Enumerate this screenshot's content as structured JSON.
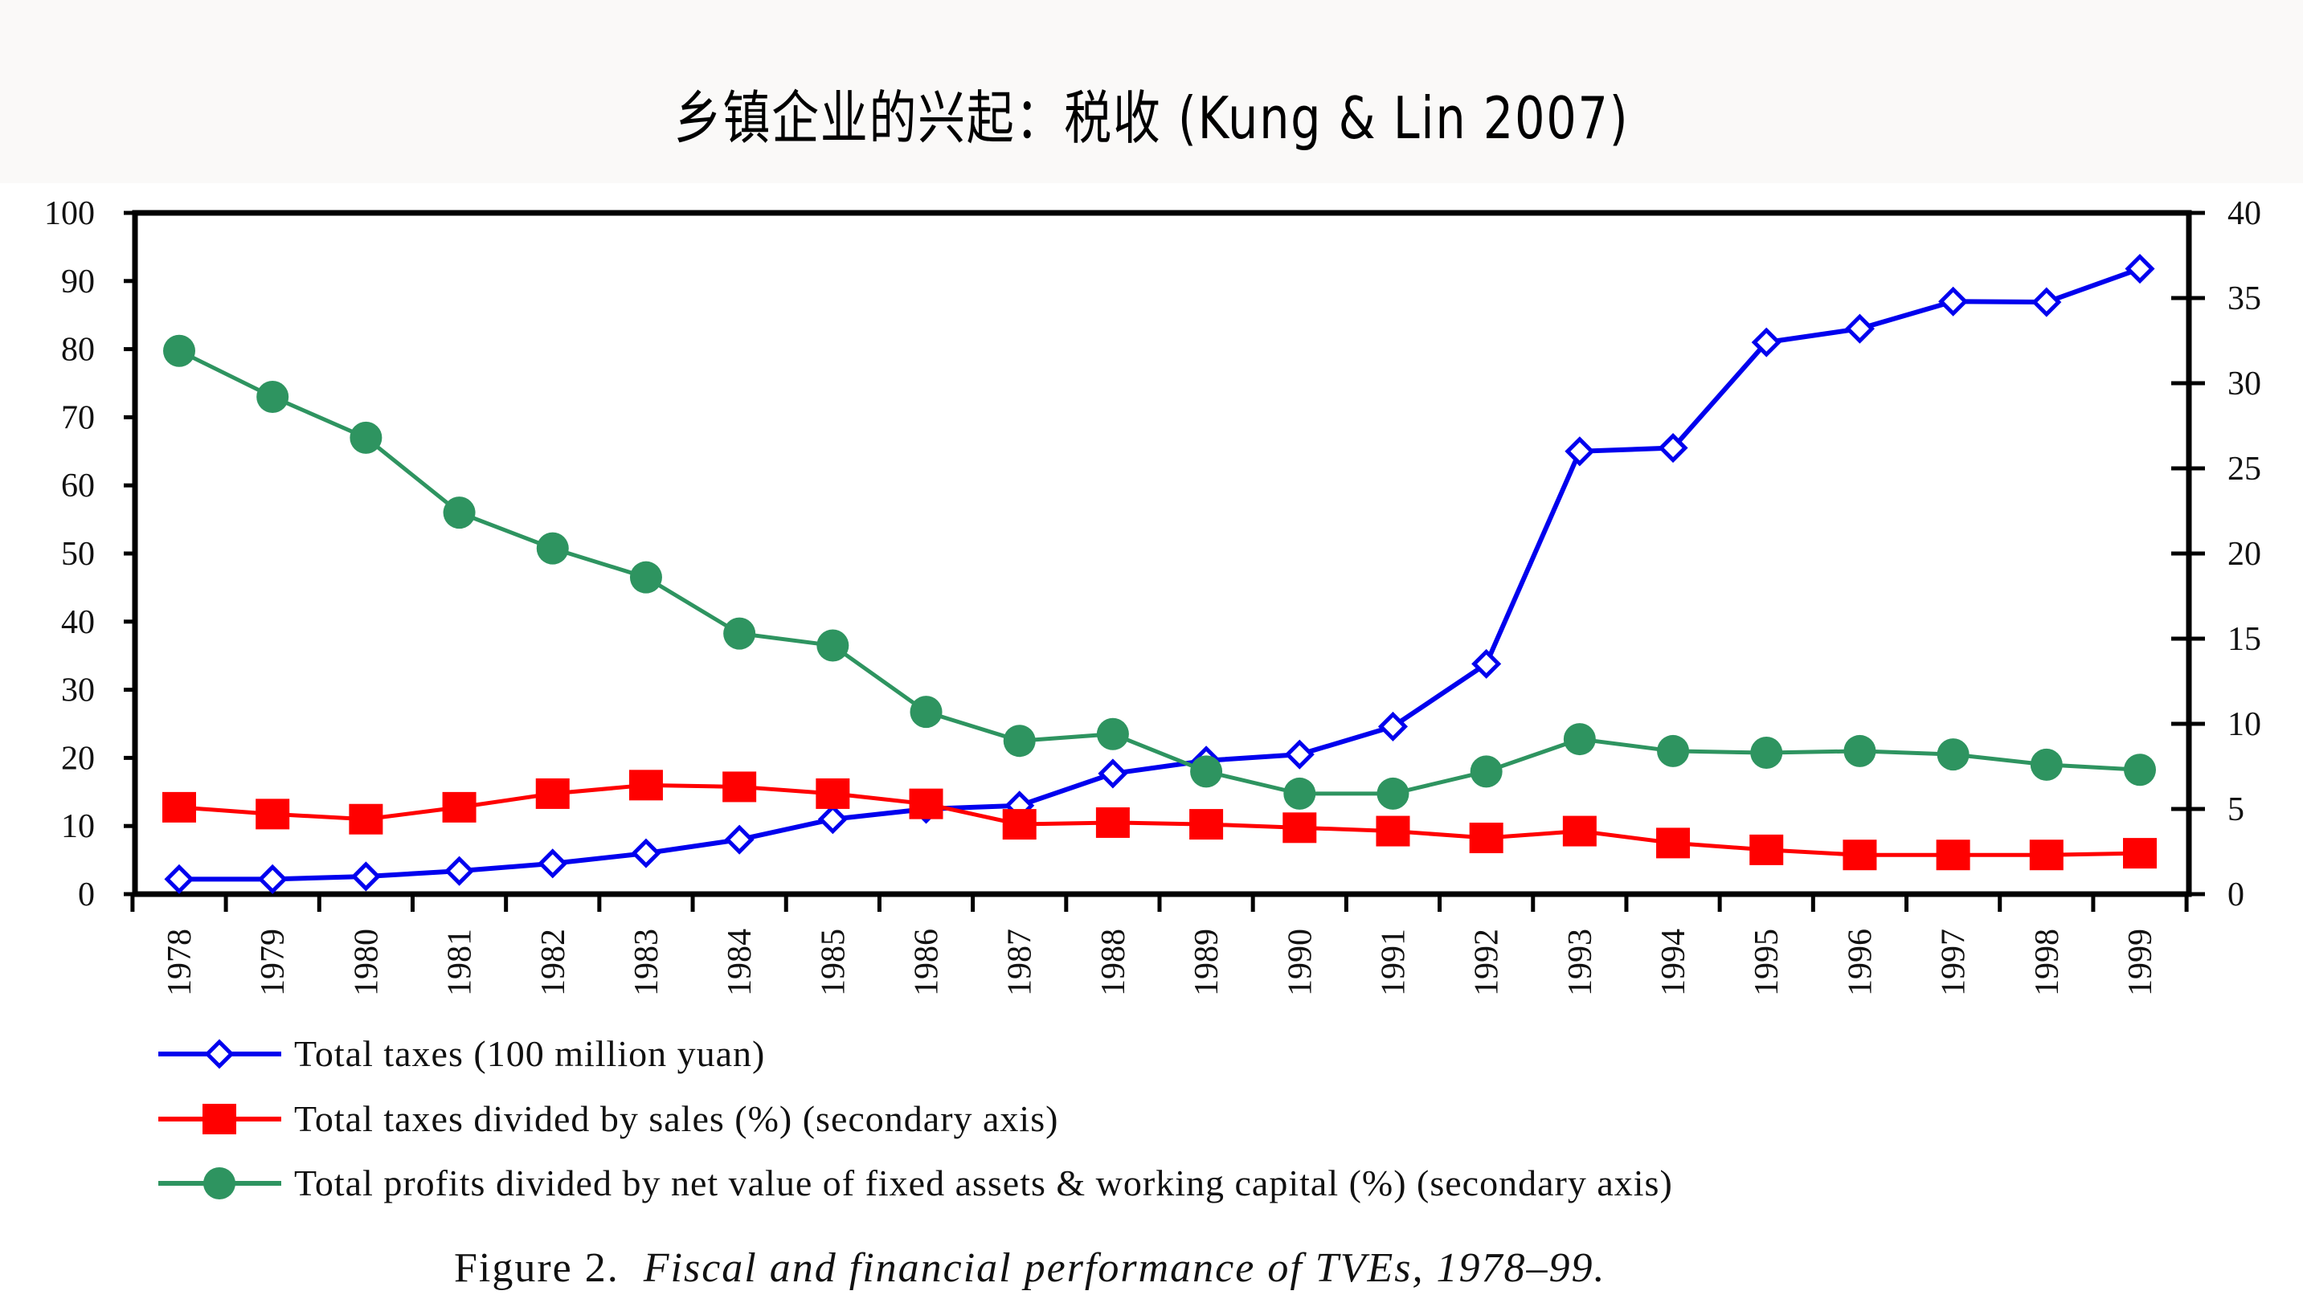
{
  "title": "乡镇企业的兴起：税收 (Kung & Lin 2007)",
  "chart_data": {
    "type": "line",
    "title": "",
    "caption_label": "Figure 2.",
    "caption_text": "Fiscal and financial performance of TVEs, 1978–99.",
    "x": [
      "1978",
      "1979",
      "1980",
      "1981",
      "1982",
      "1983",
      "1984",
      "1985",
      "1986",
      "1987",
      "1988",
      "1989",
      "1990",
      "1991",
      "1992",
      "1993",
      "1994",
      "1995",
      "1996",
      "1997",
      "1998",
      "1999"
    ],
    "primary_axis": {
      "ylim": [
        0,
        100
      ],
      "ticks": [
        "0",
        "10",
        "20",
        "30",
        "40",
        "50",
        "60",
        "70",
        "80",
        "90",
        "100"
      ]
    },
    "secondary_axis": {
      "ylim": [
        0,
        40
      ],
      "ticks": [
        "0",
        "5",
        "10",
        "15",
        "20",
        "25",
        "30",
        "35",
        "40"
      ]
    },
    "grid": false,
    "legend_placement": "bottom",
    "series": [
      {
        "name": "Total taxes (100 million yuan)",
        "axis": "primary",
        "color": "#0000ee",
        "marker": "hollow-diamond",
        "values": [
          2.2,
          2.2,
          2.6,
          3.4,
          4.5,
          6.0,
          8.0,
          11.0,
          12.5,
          13.0,
          17.7,
          19.6,
          20.5,
          24.6,
          33.8,
          65.0,
          65.5,
          81.0,
          83.0,
          87.0,
          86.9,
          91.8
        ]
      },
      {
        "name": "Total taxes divided by sales (%) (secondary axis)",
        "axis": "secondary",
        "color": "#ff0000",
        "marker": "filled-square",
        "values": [
          5.1,
          4.7,
          4.4,
          5.1,
          5.9,
          6.4,
          6.3,
          5.9,
          5.3,
          4.1,
          4.2,
          4.1,
          3.9,
          3.7,
          3.3,
          3.7,
          3.0,
          2.6,
          2.3,
          2.3,
          2.3,
          2.4
        ]
      },
      {
        "name": "Total profits divided by net value of fixed assets & working capital (%) (secondary axis)",
        "axis": "secondary",
        "color": "#2e9460",
        "marker": "filled-circle",
        "values": [
          31.9,
          29.2,
          26.8,
          22.4,
          20.3,
          18.6,
          15.3,
          14.6,
          10.7,
          9.0,
          9.4,
          7.2,
          5.9,
          5.9,
          7.2,
          9.1,
          8.4,
          8.3,
          8.4,
          8.2,
          7.6,
          7.3
        ]
      }
    ]
  }
}
